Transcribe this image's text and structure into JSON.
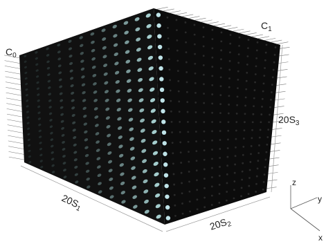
{
  "labels": {
    "c0": {
      "base": "C",
      "sub": "0"
    },
    "c1": {
      "base": "C",
      "sub": "1"
    },
    "s1": {
      "base": "20S",
      "sub": "1"
    },
    "s2": {
      "base": "20S",
      "sub": "2"
    },
    "s3": {
      "base": "20S",
      "sub": "3"
    }
  },
  "axes": {
    "z": "z",
    "y": "y",
    "x": "x"
  }
}
